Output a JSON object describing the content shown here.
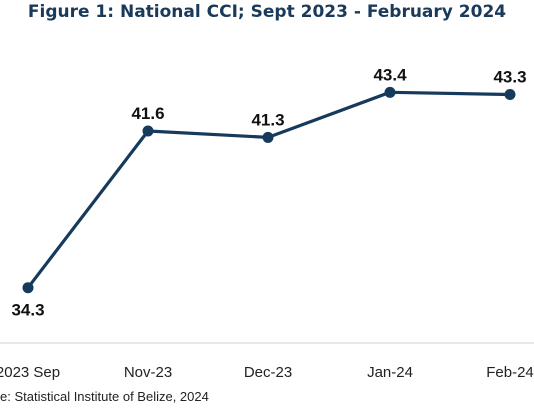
{
  "title": "Figure 1: National CCI; Sept 2023 - February 2024",
  "source": "e: Statistical Institute of Belize, 2024",
  "colors": {
    "line": "#163a5c",
    "title": "#1a3a5a",
    "axis": "#cfcfcf"
  },
  "chart_data": {
    "type": "line",
    "title": "Figure 1: National CCI; Sept 2023 - February 2024",
    "xlabel": "",
    "ylabel": "",
    "categories": [
      "2023 Sep",
      "Nov-23",
      "Dec-23",
      "Jan-24",
      "Feb-24"
    ],
    "values": [
      34.3,
      41.6,
      41.3,
      43.4,
      43.3
    ],
    "ylim": [
      30,
      45
    ],
    "grid": false,
    "legend": "none",
    "data_labels": true
  }
}
